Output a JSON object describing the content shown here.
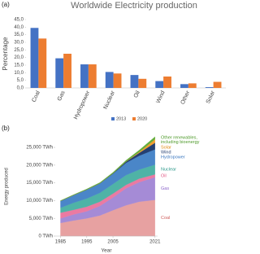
{
  "chart_data": [
    {
      "type": "bar",
      "panel": "(a)",
      "title": "Worldwide Electricity production",
      "y_label": "Percentage",
      "categories": [
        "Coal",
        "Gas",
        "Hydropower",
        "Nuclear",
        "Oil",
        "Wind",
        "Other",
        "Solar"
      ],
      "series": [
        {
          "name": "2013",
          "color": "#4472c4",
          "values": [
            39.5,
            19.5,
            15.5,
            10.5,
            8.5,
            4.5,
            2.5,
            0.5
          ]
        },
        {
          "name": "2020",
          "color": "#ed7d31",
          "values": [
            32.5,
            22.5,
            15.5,
            9.5,
            6.0,
            7.5,
            3.0,
            4.0
          ]
        }
      ],
      "ylim": [
        0,
        45
      ],
      "yticks": [
        {
          "value": 0,
          "label": "0,0"
        },
        {
          "value": 5,
          "label": "5,0"
        },
        {
          "value": 10,
          "label": "10,0"
        },
        {
          "value": 15,
          "label": "15,0"
        },
        {
          "value": 20,
          "label": "20,0"
        },
        {
          "value": 25,
          "label": "25,0"
        },
        {
          "value": 30,
          "label": "30,0"
        },
        {
          "value": 35,
          "label": "35,0"
        },
        {
          "value": 40,
          "label": "40,0"
        },
        {
          "value": 45,
          "label": "45,0"
        }
      ],
      "grid": false,
      "legend": "bottom"
    },
    {
      "type": "area",
      "panel": "(b)",
      "stacked": true,
      "x_label": "Year",
      "y_label": "Energy produced",
      "x": [
        1985,
        1990,
        1995,
        2000,
        2005,
        2010,
        2015,
        2021
      ],
      "series": [
        {
          "name": "Coal",
          "color": "#e7a1a1",
          "label_color": "#d0605e",
          "values": [
            3700,
            4400,
            5000,
            5800,
            7300,
            8700,
            9700,
            10200
          ]
        },
        {
          "name": "Gas",
          "color": "#a58bd6",
          "label_color": "#8a63c9",
          "values": [
            1300,
            1700,
            2000,
            2700,
            3600,
            4800,
            5500,
            6400
          ]
        },
        {
          "name": "Oil",
          "color": "#ea7aa2",
          "label_color": "#e0507f",
          "values": [
            1600,
            1300,
            1300,
            1200,
            1100,
            950,
            1000,
            800
          ]
        },
        {
          "name": "Nuclear",
          "color": "#4fb3a6",
          "label_color": "#2f9a8c",
          "values": [
            1400,
            2000,
            2300,
            2500,
            2700,
            2750,
            2550,
            2750
          ]
        },
        {
          "name": "Hydropower",
          "color": "#4a86c8",
          "label_color": "#3b78c0",
          "values": [
            1900,
            2150,
            2500,
            2650,
            2900,
            3450,
            3900,
            4300
          ]
        },
        {
          "name": "Wind",
          "color": "#243f72",
          "label_color": "#243f72",
          "values": [
            0,
            5,
            10,
            30,
            100,
            350,
            830,
            1850
          ]
        },
        {
          "name": "Solar",
          "color": "#f0a030",
          "label_color": "#e08a10",
          "values": [
            0,
            0,
            0,
            1,
            4,
            30,
            250,
            1000
          ]
        },
        {
          "name": "Other renewables, including bioenergy",
          "color": "#62ad3c",
          "label_color": "#4e9a2a",
          "values": [
            100,
            130,
            160,
            200,
            250,
            350,
            500,
            700
          ]
        }
      ],
      "xlim": [
        1983,
        2022
      ],
      "xticks": [
        1985,
        1995,
        2005,
        2021
      ],
      "ylim": [
        0,
        28000
      ],
      "yticks": [
        {
          "value": 0,
          "label": "0 TWh"
        },
        {
          "value": 5000,
          "label": "5,000 TWh"
        },
        {
          "value": 10000,
          "label": "10,000 TWh"
        },
        {
          "value": 15000,
          "label": "15,000 TWh"
        },
        {
          "value": 20000,
          "label": "20,000 TWh"
        },
        {
          "value": 25000,
          "label": "25,000 TWh"
        }
      ],
      "grid": false,
      "legend": "right"
    }
  ]
}
